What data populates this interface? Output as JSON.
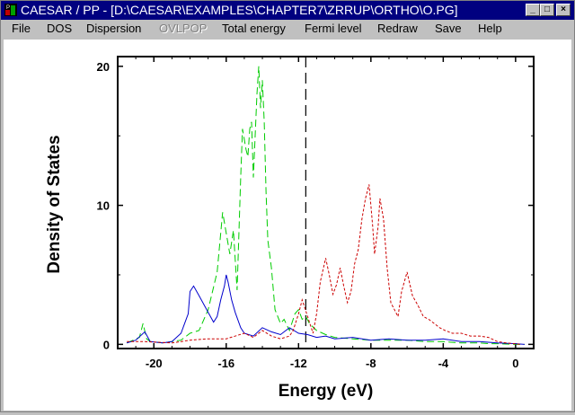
{
  "window": {
    "title": "CAESAR / PP - [D:\\CAESAR\\EXAMPLES\\CHAPTER7\\ZRRUP\\ORTHO\\O.PG]",
    "minimize_glyph": "_",
    "maximize_glyph": "□",
    "close_glyph": "×"
  },
  "menu": {
    "items": [
      {
        "label": "File",
        "enabled": true
      },
      {
        "label": "DOS",
        "enabled": true
      },
      {
        "label": "Dispersion",
        "enabled": true
      },
      {
        "label": "OVLPOP",
        "enabled": false
      },
      {
        "label": "Total energy",
        "enabled": true
      },
      {
        "label": "Fermi level",
        "enabled": true
      },
      {
        "label": "Redraw",
        "enabled": true
      },
      {
        "label": "Save",
        "enabled": true
      },
      {
        "label": "Help",
        "enabled": true
      }
    ]
  },
  "chart_data": {
    "type": "line",
    "title": "",
    "xlabel": "Energy (eV)",
    "ylabel": "Density of States",
    "xlim": [
      -22,
      1
    ],
    "ylim": [
      -0.3,
      20.7
    ],
    "xticks": [
      -20,
      -16,
      -12,
      -8,
      -4,
      0
    ],
    "xtick_labels": [
      "-20",
      "-16",
      "-12",
      "-8",
      "-4",
      "0"
    ],
    "yticks": [
      0,
      10,
      20
    ],
    "ytick_labels": [
      "0",
      "10",
      "20"
    ],
    "fermi_level": -11.6,
    "legend": "none",
    "grid": false,
    "series": [
      {
        "color": "#00cc00",
        "dash": "8,4",
        "x": [
          -21.5,
          -20.8,
          -20.6,
          -20.4,
          -20.2,
          -19.5,
          -18.5,
          -18,
          -17.5,
          -17,
          -16.5,
          -16.2,
          -16,
          -15.8,
          -15.6,
          -15.4,
          -15.2,
          -15.1,
          -14.9,
          -14.8,
          -14.7,
          -14.6,
          -14.5,
          -14.4,
          -14.3,
          -14.2,
          -14.1,
          -14.0,
          -13.9,
          -13.8,
          -13.7,
          -13.5,
          -13.3,
          -13.0,
          -12.8,
          -12.5,
          -12.2,
          -12.0,
          -11.8,
          -11.6,
          -11.4,
          -11.0,
          -10.5,
          -10,
          -9,
          -8,
          -7,
          -6,
          -5,
          -4,
          -3,
          -2,
          -1.5,
          -1,
          0,
          0.5
        ],
        "y": [
          0.1,
          0.5,
          1.5,
          0.4,
          0.2,
          0.1,
          0.3,
          0.8,
          1.0,
          2.5,
          5.2,
          9.5,
          8.0,
          6.5,
          8.2,
          3.9,
          12.0,
          15.5,
          14.0,
          13.5,
          15.5,
          16.0,
          12.0,
          15.0,
          18.0,
          20.0,
          17.0,
          19.0,
          16.0,
          11.0,
          7.5,
          5.5,
          2.5,
          1.5,
          1.8,
          1.0,
          2.2,
          2.5,
          1.8,
          2.0,
          1.5,
          1.0,
          0.7,
          0.5,
          0.4,
          0.3,
          0.3,
          0.3,
          0.2,
          0.2,
          0.1,
          0.1,
          0.05,
          0.05,
          0.0,
          0.0
        ]
      },
      {
        "color": "#0000cc",
        "dash": "",
        "x": [
          -21.5,
          -21,
          -20.5,
          -20.2,
          -19.5,
          -19,
          -18.5,
          -18.3,
          -18.1,
          -18.0,
          -17.8,
          -17.5,
          -17.0,
          -16.7,
          -16.5,
          -16.3,
          -16.1,
          -16.0,
          -15.9,
          -15.7,
          -15.5,
          -15.2,
          -15.0,
          -14.5,
          -14.0,
          -13.5,
          -13.0,
          -12.5,
          -12.0,
          -11.5,
          -11.0,
          -10.5,
          -10,
          -9,
          -8,
          -7,
          -6,
          -5,
          -4,
          -3,
          -2,
          -1,
          0,
          0.5
        ],
        "y": [
          0.1,
          0.3,
          0.9,
          0.2,
          0.1,
          0.2,
          0.8,
          1.5,
          2.2,
          3.8,
          4.2,
          3.5,
          2.3,
          1.6,
          2.0,
          3.2,
          4.2,
          5.0,
          4.5,
          3.2,
          2.3,
          1.2,
          0.8,
          0.6,
          1.2,
          0.9,
          0.7,
          1.2,
          0.8,
          0.7,
          0.5,
          0.6,
          0.4,
          0.5,
          0.3,
          0.4,
          0.3,
          0.3,
          0.4,
          0.2,
          0.2,
          0.1,
          0.05,
          0.0
        ]
      },
      {
        "color": "#cc0000",
        "dash": "3,2",
        "x": [
          -21.5,
          -20.5,
          -19,
          -18,
          -17,
          -16,
          -15,
          -14.5,
          -14,
          -13.5,
          -13,
          -12.5,
          -12.3,
          -12.0,
          -11.8,
          -11.5,
          -11.2,
          -11.0,
          -10.8,
          -10.5,
          -10.3,
          -10.1,
          -9.9,
          -9.7,
          -9.5,
          -9.3,
          -9.1,
          -8.9,
          -8.7,
          -8.5,
          -8.3,
          -8.1,
          -8.0,
          -7.9,
          -7.8,
          -7.6,
          -7.5,
          -7.3,
          -7.1,
          -6.9,
          -6.7,
          -6.5,
          -6.3,
          -6.0,
          -5.7,
          -5.4,
          -5.1,
          -4.8,
          -4.5,
          -4.2,
          -3.9,
          -3.5,
          -3.0,
          -2.5,
          -2.0,
          -1.5,
          -1.0,
          -0.5,
          0.3
        ],
        "y": [
          0.2,
          0.2,
          0.1,
          0.3,
          0.4,
          0.4,
          0.8,
          0.5,
          1.0,
          0.6,
          0.4,
          0.6,
          1.0,
          2.2,
          3.2,
          2.0,
          0.8,
          2.2,
          4.5,
          6.2,
          5.0,
          3.6,
          4.3,
          5.5,
          4.2,
          3.0,
          3.8,
          5.8,
          6.8,
          9.0,
          10.5,
          11.5,
          10.0,
          8.5,
          6.5,
          8.5,
          10.5,
          9.0,
          5.5,
          3.0,
          2.5,
          2.0,
          3.8,
          5.2,
          3.5,
          2.8,
          2.0,
          1.8,
          1.5,
          1.2,
          1.0,
          0.8,
          0.8,
          0.6,
          0.6,
          0.5,
          0.2,
          0.1,
          0.0
        ]
      }
    ]
  }
}
